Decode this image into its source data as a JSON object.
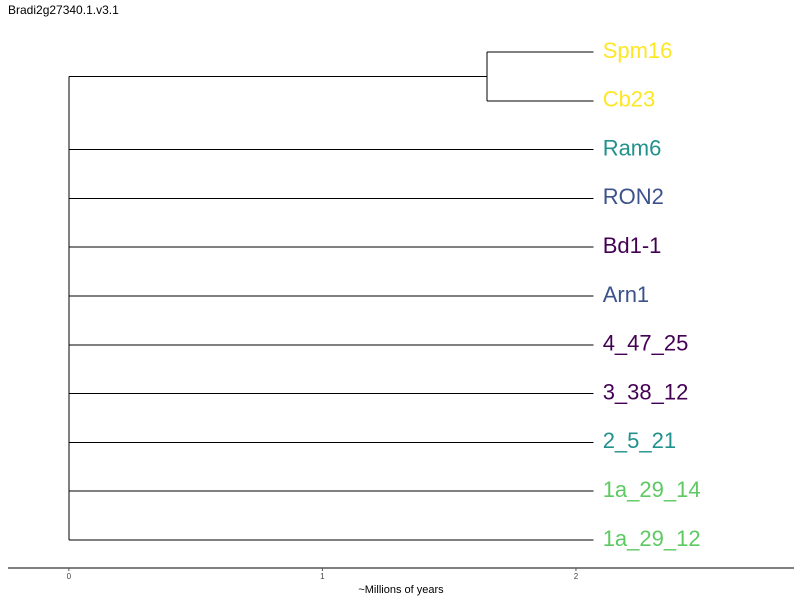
{
  "title": "Bradi2g27340.1.v3.1",
  "chart_data": {
    "type": "dendrogram",
    "xlabel": "~Millions of years",
    "x_ticks": [
      0,
      1,
      2
    ],
    "x_range": [
      -0.24,
      2.86
    ],
    "leaves": [
      {
        "name": "Spm16",
        "color": "#fde725"
      },
      {
        "name": "Cb23",
        "color": "#fde725"
      },
      {
        "name": "Ram6",
        "color": "#21918c"
      },
      {
        "name": "RON2",
        "color": "#3b528b"
      },
      {
        "name": "Bd1-1",
        "color": "#440154"
      },
      {
        "name": "Arn1",
        "color": "#3b528b"
      },
      {
        "name": "4_47_25",
        "color": "#440154"
      },
      {
        "name": "3_38_12",
        "color": "#440154"
      },
      {
        "name": "2_5_21",
        "color": "#21918c"
      },
      {
        "name": "1a_29_14",
        "color": "#5ec962"
      },
      {
        "name": "1a_29_12",
        "color": "#5ec962"
      }
    ],
    "tree": {
      "x": 0,
      "children": [
        {
          "x": 1.65,
          "children": [
            {
              "leaf": 0,
              "x": 2.07
            },
            {
              "leaf": 1,
              "x": 2.07
            }
          ]
        },
        {
          "leaf": 2,
          "x": 2.07
        },
        {
          "leaf": 3,
          "x": 2.07
        },
        {
          "leaf": 4,
          "x": 2.07
        },
        {
          "leaf": 5,
          "x": 2.07
        },
        {
          "leaf": 6,
          "x": 2.07
        },
        {
          "leaf": 7,
          "x": 2.07
        },
        {
          "leaf": 8,
          "x": 2.07
        },
        {
          "leaf": 9,
          "x": 2.07
        },
        {
          "leaf": 10,
          "x": 2.07
        }
      ]
    }
  }
}
